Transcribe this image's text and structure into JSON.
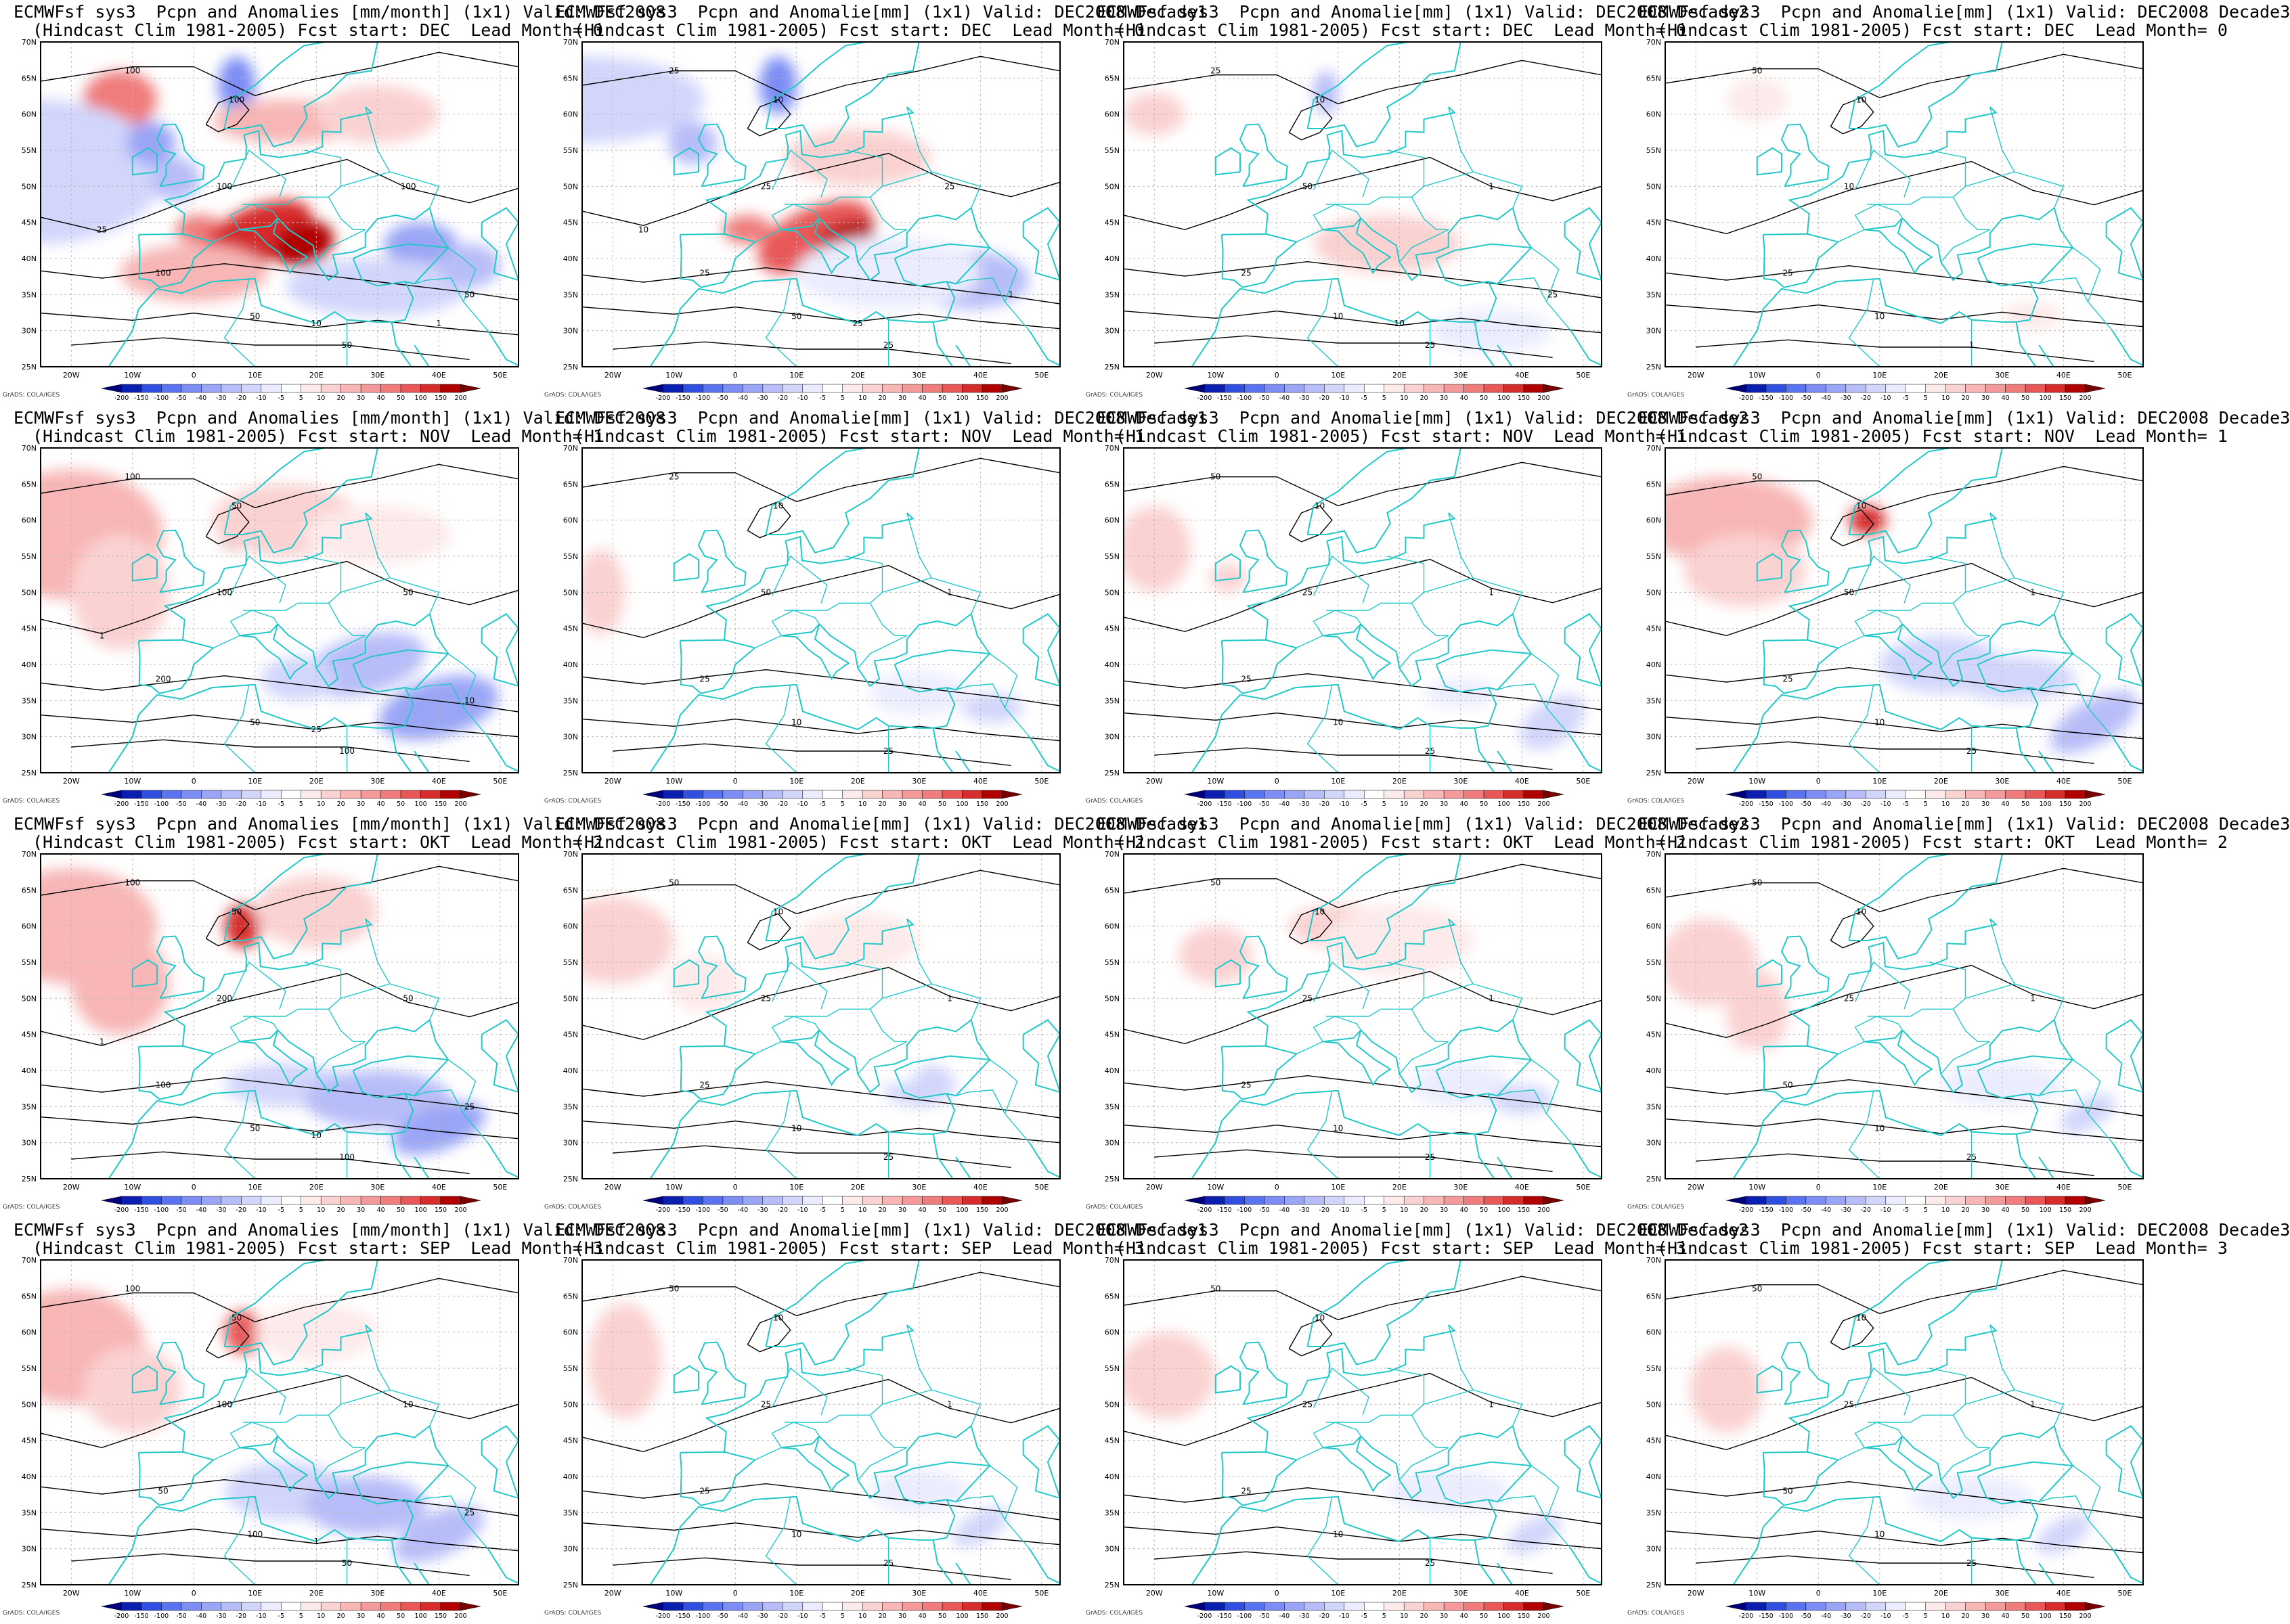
{
  "figure": {
    "footer_label": "GrADS: COLA/IGES",
    "lat_labels": [
      "70N",
      "65N",
      "60N",
      "55N",
      "50N",
      "45N",
      "40N",
      "35N",
      "30N",
      "25N"
    ],
    "lon_labels": [
      "20W",
      "10W",
      "0",
      "10E",
      "20E",
      "30E",
      "40E",
      "50E"
    ],
    "colorbar_ticks": [
      "-200",
      "-150",
      "-100",
      "-50",
      "-40",
      "-30",
      "-20",
      "-10",
      "-5",
      "5",
      "10",
      "20",
      "30",
      "40",
      "50",
      "100",
      "150",
      "200"
    ],
    "colorbar_colors": [
      "#00007a",
      "#0a1fb0",
      "#2f4fe0",
      "#5a73f0",
      "#7c8df4",
      "#9aa5f6",
      "#b7bdf8",
      "#d2d6fb",
      "#ebedfe",
      "#ffffff",
      "#fdeaea",
      "#fbd2d2",
      "#f8b6b6",
      "#f59a9a",
      "#f07c7c",
      "#e85858",
      "#d62c2c",
      "#b00000",
      "#7a0000"
    ],
    "colors": {
      "coast": "#22c8c8",
      "contour": "#000000",
      "grid": "#bbbbbb"
    }
  },
  "panels": [
    {
      "title1": "ECMWFsf sys3  Pcpn and Anomalies [mm/month] (1x1) Valid: DEC2008",
      "title2": "(Hindcast Clim 1981-2005) Fcst start: DEC  Lead Month= 0",
      "contour_labels": [
        "100",
        "100",
        "100",
        "50",
        "50",
        "100",
        "100",
        "50",
        "10",
        "25",
        "1"
      ]
    },
    {
      "title1": "ECMWFsf sys3  Pcpn and Anomalie[mm] (1x1) Valid: DEC2008 Decade1",
      "title2": "(Hindcast Clim 1981-2005) Fcst start: DEC  Lead Month= 0",
      "contour_labels": [
        "25",
        "25",
        "25",
        "50",
        "25",
        "10",
        "25",
        "1",
        "25",
        "10"
      ]
    },
    {
      "title1": "ECMWFsf sys3  Pcpn and Anomalie[mm] (1x1) Valid: DEC2008 Decade2",
      "title2": "(Hindcast Clim 1981-2005) Fcst start: DEC  Lead Month= 0",
      "contour_labels": [
        "25",
        "50",
        "25",
        "10",
        "25",
        "10",
        "1",
        "25",
        "10"
      ]
    },
    {
      "title1": "ECMWFsf sys3  Pcpn and Anomalie[mm] (1x1) Valid: DEC2008 Decade3",
      "title2": "(Hindcast Clim 1981-2005) Fcst start: DEC  Lead Month= 0",
      "contour_labels": [
        "50",
        "10",
        "25",
        "10",
        "1",
        "10"
      ]
    },
    {
      "title1": "ECMWFsf sys3  Pcpn and Anomalies [mm/month] (1x1) Valid: DEC2008",
      "title2": "(Hindcast Clim 1981-2005) Fcst start: NOV  Lead Month= 1",
      "contour_labels": [
        "100",
        "100",
        "200",
        "50",
        "100",
        "50",
        "50",
        "10",
        "25",
        "1"
      ]
    },
    {
      "title1": "ECMWFsf sys3  Pcpn and Anomalie[mm] (1x1) Valid: DEC2008 Decade1",
      "title2": "(Hindcast Clim 1981-2005) Fcst start: NOV  Lead Month= 1",
      "contour_labels": [
        "25",
        "50",
        "25",
        "10",
        "25",
        "10",
        "1"
      ]
    },
    {
      "title1": "ECMWFsf sys3  Pcpn and Anomalie[mm] (1x1) Valid: DEC2008 Decade2",
      "title2": "(Hindcast Clim 1981-2005) Fcst start: NOV  Lead Month= 1",
      "contour_labels": [
        "50",
        "25",
        "25",
        "10",
        "25",
        "10",
        "1"
      ]
    },
    {
      "title1": "ECMWFsf sys3  Pcpn and Anomalie[mm] (1x1) Valid: DEC2008 Decade3",
      "title2": "(Hindcast Clim 1981-2005) Fcst start: NOV  Lead Month= 1",
      "contour_labels": [
        "50",
        "50",
        "25",
        "10",
        "25",
        "10",
        "1"
      ]
    },
    {
      "title1": "ECMWFsf sys3  Pcpn and Anomalies [mm/month] (1x1) Valid: DEC2008",
      "title2": "(Hindcast Clim 1981-2005) Fcst start: OKT  Lead Month= 2",
      "contour_labels": [
        "100",
        "200",
        "100",
        "50",
        "100",
        "50",
        "50",
        "25",
        "10",
        "1"
      ]
    },
    {
      "title1": "ECMWFsf sys3  Pcpn and Anomalie[mm] (1x1) Valid: DEC2008 Decade1",
      "title2": "(Hindcast Clim 1981-2005) Fcst start: OKT  Lead Month= 2",
      "contour_labels": [
        "50",
        "25",
        "25",
        "10",
        "25",
        "10",
        "1"
      ]
    },
    {
      "title1": "ECMWFsf sys3  Pcpn and Anomalie[mm] (1x1) Valid: DEC2008 Decade2",
      "title2": "(Hindcast Clim 1981-2005) Fcst start: OKT  Lead Month= 2",
      "contour_labels": [
        "50",
        "25",
        "25",
        "10",
        "25",
        "10",
        "1"
      ]
    },
    {
      "title1": "ECMWFsf sys3  Pcpn and Anomalie[mm] (1x1) Valid: DEC2008 Decade3",
      "title2": "(Hindcast Clim 1981-2005) Fcst start: OKT  Lead Month= 2",
      "contour_labels": [
        "50",
        "25",
        "50",
        "10",
        "25",
        "10",
        "1"
      ]
    },
    {
      "title1": "ECMWFsf sys3  Pcpn and Anomalies [mm/month] (1x1) Valid: DEC2008",
      "title2": "(Hindcast Clim 1981-2005) Fcst start: SEP  Lead Month= 3",
      "contour_labels": [
        "100",
        "100",
        "50",
        "100",
        "50",
        "50",
        "10",
        "25",
        "1"
      ]
    },
    {
      "title1": "ECMWFsf sys3  Pcpn and Anomalie[mm] (1x1) Valid: DEC2008 Decade1",
      "title2": "(Hindcast Clim 1981-2005) Fcst start: SEP  Lead Month= 3",
      "contour_labels": [
        "50",
        "25",
        "25",
        "10",
        "25",
        "10",
        "1"
      ]
    },
    {
      "title1": "ECMWFsf sys3  Pcpn and Anomalie[mm] (1x1) Valid: DEC2008 Decade2",
      "title2": "(Hindcast Clim 1981-2005) Fcst start: SEP  Lead Month= 3",
      "contour_labels": [
        "50",
        "25",
        "25",
        "10",
        "25",
        "10",
        "1"
      ]
    },
    {
      "title1": "ECMWFsf sys3  Pcpn and Anomalie[mm] (1x1) Valid: DEC2008 Decade3",
      "title2": "(Hindcast Clim 1981-2005) Fcst start: SEP  Lead Month= 3",
      "contour_labels": [
        "50",
        "25",
        "50",
        "10",
        "25",
        "10",
        "1"
      ]
    }
  ]
}
